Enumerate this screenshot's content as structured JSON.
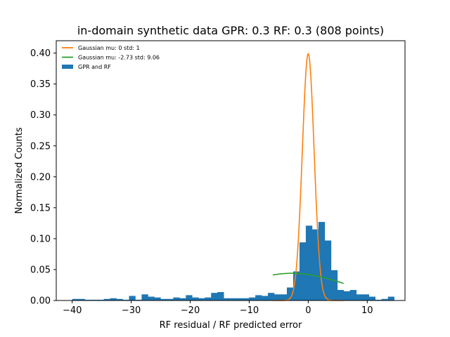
{
  "chart_data": {
    "type": "histogram",
    "title": "in-domain synthetic data GPR: 0.3 RF: 0.3 (808 points)",
    "xlabel": "RF residual / RF predicted error",
    "ylabel": "Normalized Counts",
    "xlim": [
      -42.7,
      16.4
    ],
    "ylim": [
      0,
      0.42
    ],
    "xticks": [
      -40,
      -30,
      -20,
      -10,
      0,
      10
    ],
    "yticks": [
      0.0,
      0.05,
      0.1,
      0.15,
      0.2,
      0.25,
      0.3,
      0.35,
      0.4
    ],
    "grid": false,
    "legend_position": "top-left",
    "legend": [
      {
        "label": "Gaussian mu: 0 std: 1",
        "color": "#ff7f0e",
        "kind": "line"
      },
      {
        "label": "Gaussian mu: -2.73 std: 9.06",
        "color": "#2ca02c",
        "kind": "line"
      },
      {
        "label": "GPR and RF",
        "color": "#1f77b4",
        "kind": "patch"
      }
    ],
    "histogram": {
      "name": "GPR and RF",
      "color": "#1f77b4",
      "bin_start": -40,
      "bin_width": 1.07,
      "counts": [
        0.0025,
        0.0025,
        0.0012,
        0.0012,
        0.0012,
        0.0025,
        0.0037,
        0.0025,
        0.0012,
        0.0074,
        0.0012,
        0.0099,
        0.0062,
        0.0049,
        0.0025,
        0.0025,
        0.0049,
        0.0037,
        0.0086,
        0.0049,
        0.0037,
        0.0049,
        0.0123,
        0.0136,
        0.0037,
        0.0037,
        0.0037,
        0.0037,
        0.0049,
        0.0086,
        0.0074,
        0.0123,
        0.0099,
        0.0099,
        0.021,
        0.047,
        0.094,
        0.121,
        0.115,
        0.127,
        0.097,
        0.049,
        0.017,
        0.015,
        0.017,
        0.0099,
        0.0099,
        0.0062,
        0.0012,
        0.0025,
        0.0062
      ]
    },
    "curves": [
      {
        "name": "Gaussian mu: 0 std: 1",
        "mu": 0,
        "std": 1,
        "x_range": [
          -6,
          6
        ],
        "color": "#ff7f0e"
      },
      {
        "name": "Gaussian mu: -2.73 std: 9.06",
        "mu": -2.73,
        "std": 9.06,
        "x_range": [
          -6,
          6
        ],
        "color": "#2ca02c"
      }
    ]
  }
}
